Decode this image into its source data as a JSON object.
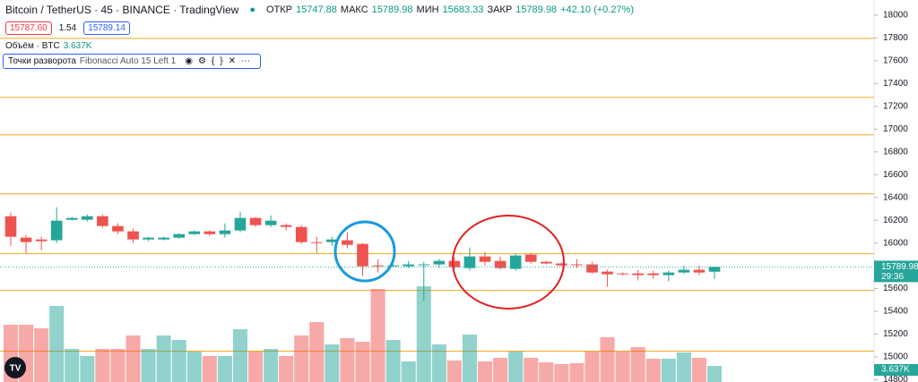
{
  "header": {
    "symbol": "Bitcoin / TetherUS · 45 · BINANCE · TradingView",
    "open_label": "ОТКР",
    "open": "15747.88",
    "high_label": "МАКС",
    "high": "15789.98",
    "low_label": "МИН",
    "low": "15683.33",
    "close_label": "ЗАКР",
    "close": "15789.98",
    "change": "+42.10 (+0.27%)",
    "sell": "15787.60",
    "spread": "1.54",
    "buy": "15789.14",
    "volume_label": "Объём · BTC",
    "volume": "3.637K",
    "indicator_name": "Точки разворота",
    "indicator_params": "Fibonacci Auto 15 Left 1"
  },
  "chart_data": {
    "type": "candlestick",
    "up_color": "#26a69a",
    "down_color": "#ef5350",
    "level_color": "#f5a623",
    "ylim": [
      14780,
      18133
    ],
    "yticks": [
      14800,
      15000,
      15200,
      15400,
      15600,
      16000,
      16200,
      16400,
      16600,
      16800,
      17000,
      17200,
      17400,
      17600,
      17800,
      18000
    ],
    "levels": [
      17796,
      17278,
      16949,
      16431,
      15906,
      15584,
      15051
    ],
    "last_price": 15789.98,
    "last_price_label": "15789.98",
    "countdown": "29:36",
    "last_volume_label": "3.637K",
    "volume_lim": [
      0,
      86254
    ],
    "open": [
      16235,
      16047,
      16031,
      16024,
      16204,
      16204,
      16235,
      16149,
      16102,
      16031,
      16031,
      16047,
      16078,
      16102,
      16078,
      16110,
      16220,
      16157,
      16157,
      16141,
      16008,
      16008,
      16024,
      15992,
      15804,
      15796,
      15796,
      15804,
      15812,
      15843,
      15780,
      15882,
      15843,
      15773,
      15898,
      15835,
      15820,
      15812,
      15812,
      15749,
      15733,
      15733,
      15733,
      15718,
      15741,
      15765,
      15748
    ],
    "high": [
      16267,
      16071,
      16055,
      16314,
      16228,
      16251,
      16251,
      16173,
      16126,
      16055,
      16055,
      16086,
      16110,
      16110,
      16173,
      16275,
      16228,
      16243,
      16173,
      16157,
      16055,
      16055,
      16094,
      16000,
      15859,
      15812,
      15843,
      15835,
      15859,
      15875,
      15961,
      15922,
      15882,
      15906,
      15914,
      15843,
      15827,
      15859,
      15835,
      15765,
      15741,
      15765,
      15757,
      15757,
      15804,
      15804,
      15790
    ],
    "low": [
      15976,
      15914,
      15937,
      16000,
      16196,
      16188,
      16133,
      16078,
      16000,
      16016,
      16024,
      16039,
      16071,
      16063,
      16047,
      16094,
      16141,
      16141,
      16110,
      15992,
      15914,
      15976,
      15953,
      15710,
      15741,
      15788,
      15780,
      15490,
      15780,
      15773,
      15757,
      15804,
      15765,
      15757,
      15820,
      15812,
      15796,
      15780,
      15733,
      15616,
      15718,
      15671,
      15686,
      15663,
      15733,
      15718,
      15683
    ],
    "close": [
      16055,
      16008,
      16016,
      16196,
      16220,
      16235,
      16149,
      16102,
      16031,
      16047,
      16047,
      16078,
      16102,
      16078,
      16110,
      16220,
      16157,
      16196,
      16141,
      16008,
      16000,
      16031,
      15984,
      15796,
      15796,
      15804,
      15812,
      15812,
      15843,
      15788,
      15882,
      15835,
      15780,
      15890,
      15835,
      15820,
      15804,
      15804,
      15741,
      15725,
      15725,
      15718,
      15718,
      15741,
      15765,
      15741,
      15790
    ],
    "volume": [
      12928,
      12928,
      12120,
      17170,
      7474,
      5858,
      7474,
      7474,
      10504,
      7474,
      10504,
      9494,
      6868,
      5858,
      5858,
      11918,
      6868,
      7474,
      5858,
      10504,
      13534,
      8484,
      9898,
      9090,
      21008,
      9494,
      4646,
      21614,
      8484,
      4848,
      10706,
      4646,
      5454,
      6868,
      5454,
      4444,
      4040,
      4242,
      6868,
      10100,
      6868,
      7878,
      5252,
      5252,
      6666,
      5454,
      3637
    ]
  }
}
